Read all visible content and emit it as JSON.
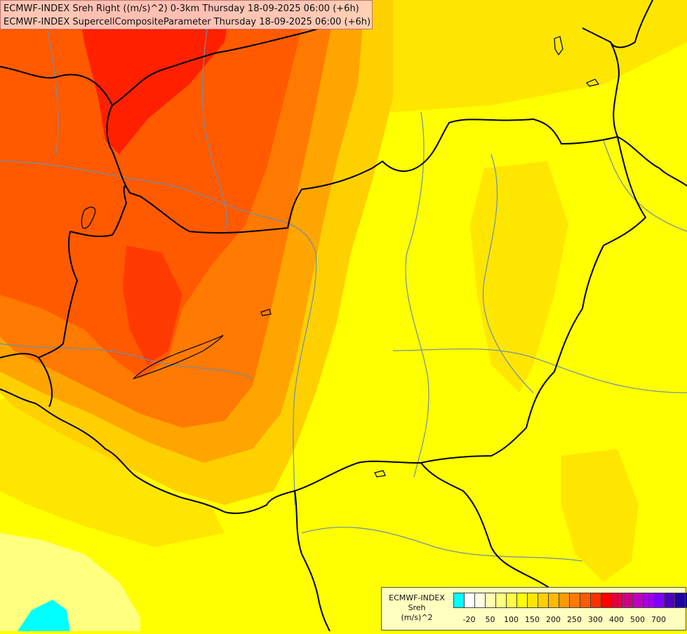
{
  "header": {
    "line1": "ECMWF-INDEX Sreh Right ((m/s)^2) 0-3km Thursday 18-09-2025 06:00 (+6h)",
    "line2": "ECMWF-INDEX SupercellCompositeParameter Thursday 18-09-2025 06:00 (+6h)"
  },
  "legend": {
    "title1": "ECMWF-INDEX",
    "title2": "Sreh",
    "title3": "(m/s)^2",
    "ticks": [
      "-20",
      "50",
      "100",
      "150",
      "200",
      "250",
      "300",
      "400",
      "500",
      "700"
    ],
    "colors": [
      "#00ffff",
      "#ffffff",
      "#ffffe0",
      "#ffffb0",
      "#ffff80",
      "#ffff40",
      "#ffff00",
      "#ffe600",
      "#ffd000",
      "#ffba00",
      "#ff9a00",
      "#ff7a00",
      "#ff5a00",
      "#ff3000",
      "#ff0000",
      "#e00040",
      "#d00080",
      "#c000c0",
      "#a000e0",
      "#8000ff",
      "#5000c0",
      "#2000a0",
      "#000080"
    ]
  },
  "map": {
    "colors": {
      "yellow": "#ffff00",
      "light_yellow": "#ffff80",
      "gold": "#ffe600",
      "amber": "#ffd000",
      "orange": "#ffa500",
      "dark_orange": "#ff7a00",
      "red_orange": "#ff5a00",
      "red": "#ff0000",
      "cyan": "#00ffff",
      "border": "#000000",
      "river": "#6f8fa8"
    }
  }
}
